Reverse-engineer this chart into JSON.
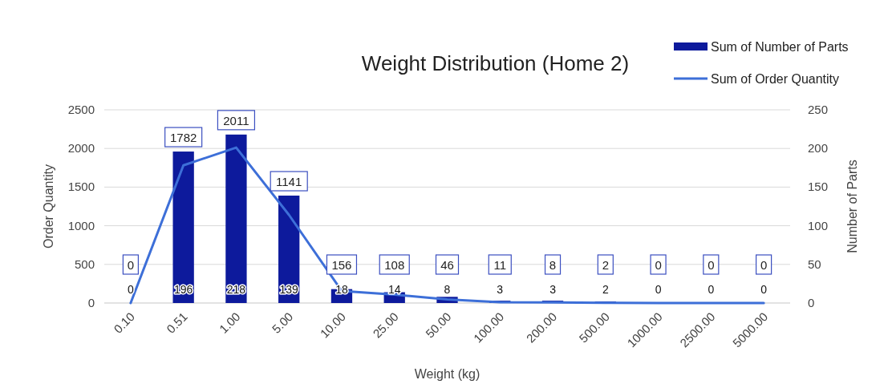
{
  "chart_data": {
    "type": "bar",
    "title": "Weight Distribution (Home 2)",
    "xlabel": "Weight (kg)",
    "ylabel": "Order Quantity",
    "y2label": "Number of Parts",
    "categories": [
      "0.10",
      "0.51",
      "1.00",
      "5.00",
      "10.00",
      "25.00",
      "50.00",
      "100.00",
      "200.00",
      "500.00",
      "1000.00",
      "2500.00",
      "5000.00"
    ],
    "series": [
      {
        "name": "Sum of Number of Parts",
        "axis": "y2",
        "color": "#0d1a9c",
        "values": [
          0,
          196,
          218,
          139,
          18,
          14,
          8,
          3,
          3,
          2,
          0,
          0,
          0
        ]
      },
      {
        "name": "Sum of Order Quantity",
        "type": "line",
        "color": "#3d6fd8",
        "values": [
          0,
          1782,
          2011,
          1141,
          156,
          108,
          46,
          11,
          8,
          2,
          0,
          0,
          0
        ]
      }
    ],
    "ylim": [
      0,
      2500
    ],
    "yticks": [
      0,
      500,
      1000,
      1500,
      2000,
      2500
    ],
    "y2lim": [
      0,
      250
    ],
    "y2ticks": [
      0,
      50,
      100,
      150,
      200,
      250
    ],
    "grid": "y",
    "legend": "top right",
    "data_labels": true
  }
}
